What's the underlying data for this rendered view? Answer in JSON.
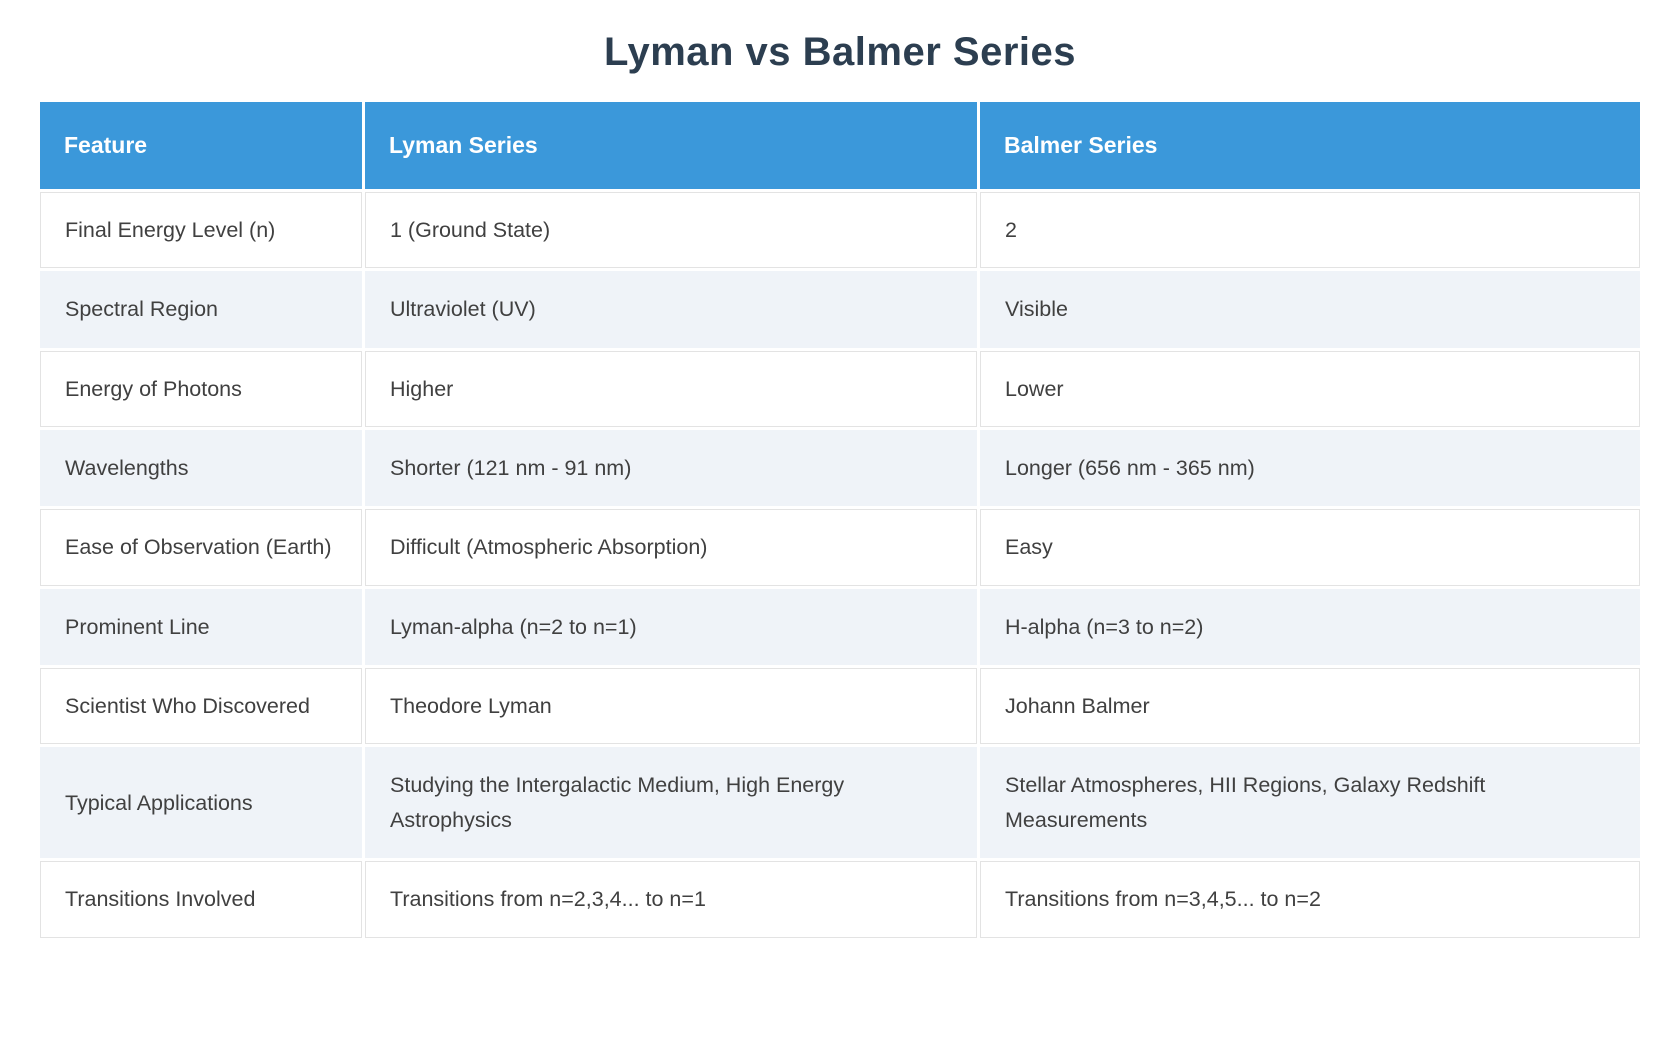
{
  "page_title": "Lyman vs Balmer Series",
  "colors": {
    "header_bg": "#3b98da",
    "header_text": "#ffffff",
    "alt_row_bg": "#eff3f8",
    "title_text": "#2c3e50",
    "body_text": "#404040",
    "cell_border": "#e3e3e3"
  },
  "chart_data": {
    "type": "table",
    "title": "Lyman vs Balmer Series",
    "columns": [
      "Feature",
      "Lyman Series",
      "Balmer Series"
    ],
    "rows": [
      [
        "Final Energy Level (n)",
        "1 (Ground State)",
        "2"
      ],
      [
        "Spectral Region",
        "Ultraviolet (UV)",
        "Visible"
      ],
      [
        "Energy of Photons",
        "Higher",
        "Lower"
      ],
      [
        "Wavelengths",
        "Shorter (121 nm - 91 nm)",
        "Longer (656 nm - 365 nm)"
      ],
      [
        "Ease of Observation (Earth)",
        "Difficult (Atmospheric Absorption)",
        "Easy"
      ],
      [
        "Prominent Line",
        "Lyman-alpha (n=2 to n=1)",
        "H-alpha (n=3 to n=2)"
      ],
      [
        "Scientist Who Discovered",
        "Theodore Lyman",
        "Johann Balmer"
      ],
      [
        "Typical Applications",
        "Studying the Intergalactic Medium, High Energy Astrophysics",
        "Stellar Atmospheres, HII Regions, Galaxy Redshift Measurements"
      ],
      [
        "Transitions Involved",
        "Transitions from n=2,3,4... to n=1",
        "Transitions from n=3,4,5... to n=2"
      ]
    ]
  }
}
